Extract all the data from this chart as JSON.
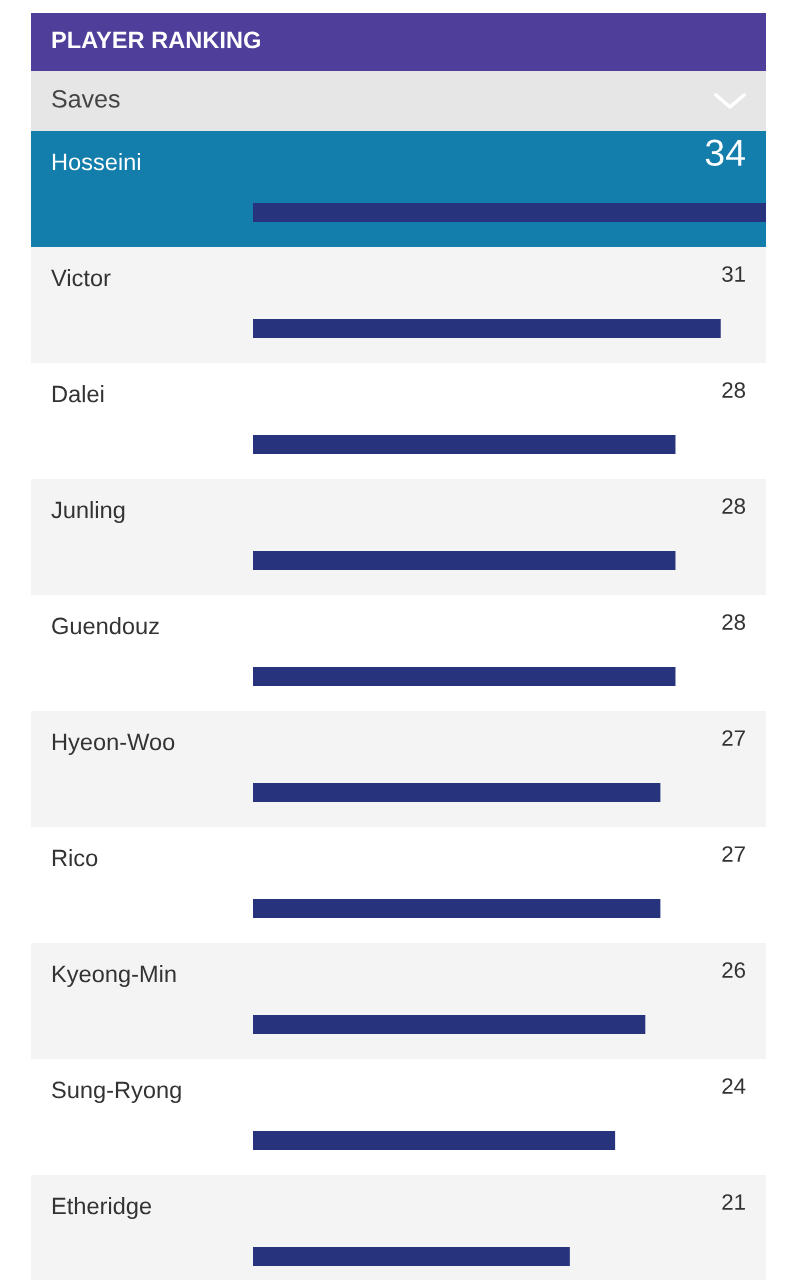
{
  "chart_data": {
    "type": "bar",
    "orientation": "horizontal",
    "title": "PLAYER RANKING",
    "subtitle": "Saves",
    "categories": [
      "Hosseini",
      "Victor",
      "Dalei",
      "Junling",
      "Guendouz",
      "Hyeon-Woo",
      "Rico",
      "Kyeong-Min",
      "Sung-Ryong",
      "Etheridge"
    ],
    "values": [
      34,
      31,
      28,
      28,
      28,
      27,
      27,
      26,
      24,
      21
    ],
    "color": "#27337d",
    "data_labels": true
  }
}
